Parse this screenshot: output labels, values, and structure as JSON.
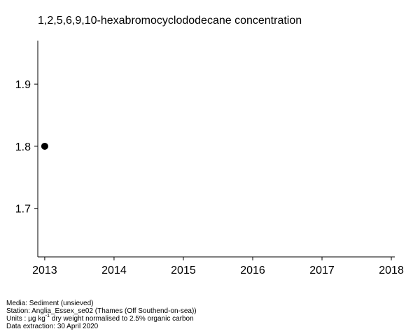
{
  "chart_data": {
    "type": "scatter",
    "title": "1,2,5,6,9,10-hexabromocyclododecane concentration",
    "xlabel": "",
    "ylabel": "",
    "x_ticks": [
      "2013",
      "2014",
      "2015",
      "2016",
      "2017",
      "2018"
    ],
    "x_tick_values": [
      2013,
      2014,
      2015,
      2016,
      2017,
      2018
    ],
    "y_ticks": [
      "1.7",
      "1.8",
      "1.9"
    ],
    "y_tick_values": [
      1.7,
      1.8,
      1.9
    ],
    "xlim": [
      2012.9,
      2018.05
    ],
    "ylim": [
      1.622,
      1.97
    ],
    "grid": false,
    "points": [
      {
        "x": 2013,
        "y": 1.8
      }
    ],
    "marker_color": "#000000",
    "axis_color": "#000000"
  },
  "footer": {
    "media": "Media: Sediment (unsieved)",
    "station": "Station: Anglia_Essex_se02 (Thames (Off Southend-on-sea))",
    "units_prefix": "Units : µg kg",
    "units_sup": "-1",
    "units_suffix": " dry weight normalised to 2.5% organic carbon",
    "extraction": "Data extraction: 30 April 2020"
  }
}
